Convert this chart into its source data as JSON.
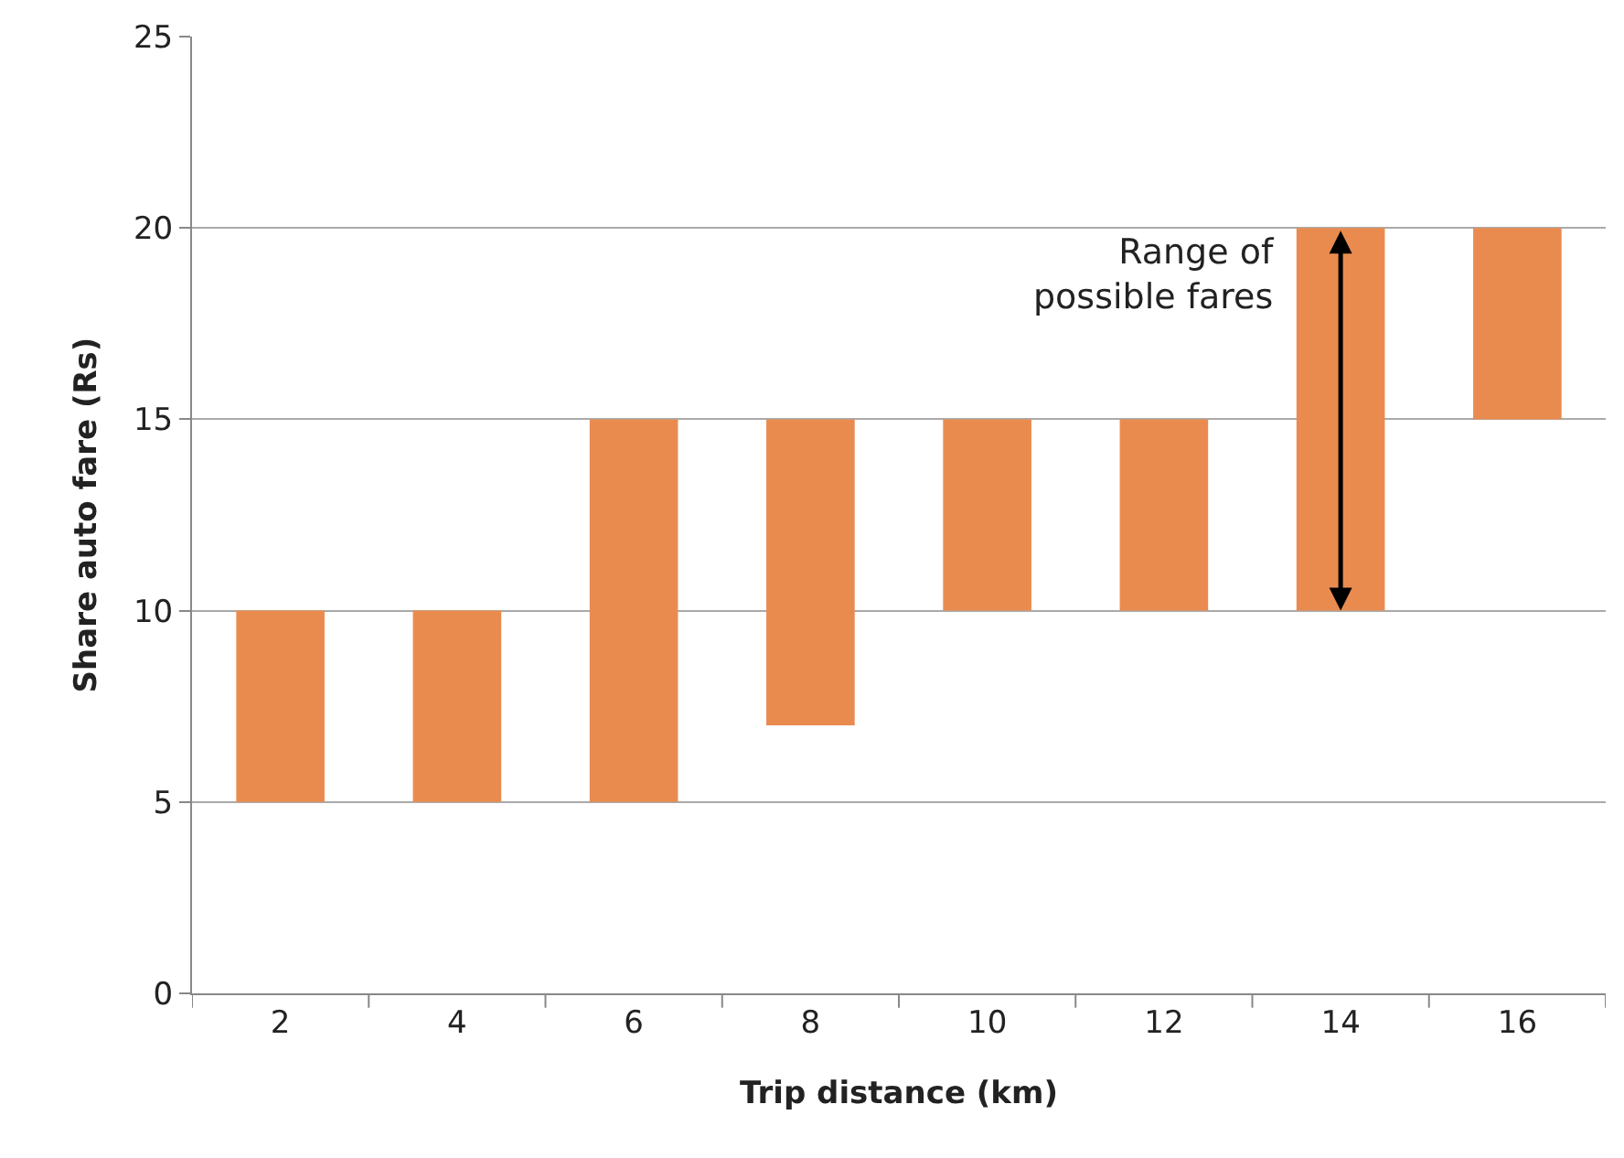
{
  "chart_data": {
    "type": "bar",
    "xlabel": "Trip distance (km)",
    "ylabel": "Share auto fare (Rs)",
    "categories": [
      "2",
      "4",
      "6",
      "8",
      "10",
      "12",
      "14",
      "16"
    ],
    "values": [
      5,
      5,
      10,
      8,
      5,
      5,
      10,
      5
    ],
    "base": [
      5,
      5,
      5,
      7,
      10,
      10,
      10,
      15
    ],
    "color": "#e98b4f",
    "ylim": [
      0,
      25
    ],
    "yticks": [
      0,
      5,
      10,
      15,
      20,
      25
    ],
    "grid": "y",
    "annotations": [
      {
        "text": "Range of\npossible fares",
        "x": "14",
        "y": 20
      }
    ]
  }
}
